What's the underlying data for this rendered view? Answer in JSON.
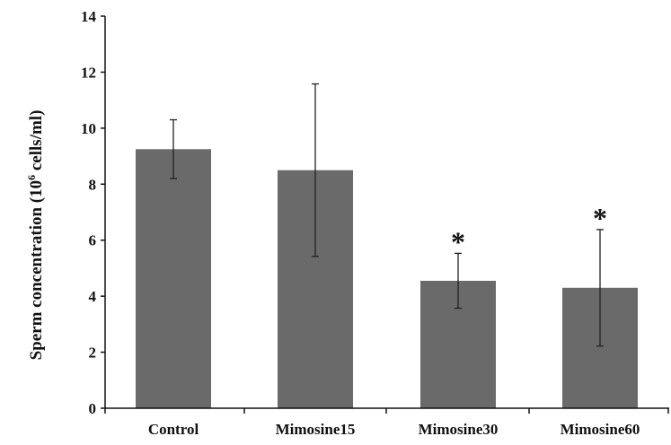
{
  "chart_data": {
    "type": "bar",
    "title": "",
    "xlabel": "",
    "ylabel": {
      "prefix": "Sperm concentration (10",
      "superscript": "6",
      "suffix": " cells/ml)"
    },
    "ylim": [
      0,
      14
    ],
    "yticks": [
      0,
      2,
      4,
      6,
      8,
      10,
      12,
      14
    ],
    "categories": [
      "Control",
      "Mimosine15",
      "Mimosine30",
      "Mimosine60"
    ],
    "values": [
      9.25,
      8.5,
      4.55,
      4.3
    ],
    "error": [
      1.05,
      3.08,
      0.98,
      2.08
    ],
    "significance": [
      "",
      "",
      "*",
      "*"
    ],
    "bar_color": "#6a6a6a",
    "grid": false,
    "legend": "none"
  }
}
